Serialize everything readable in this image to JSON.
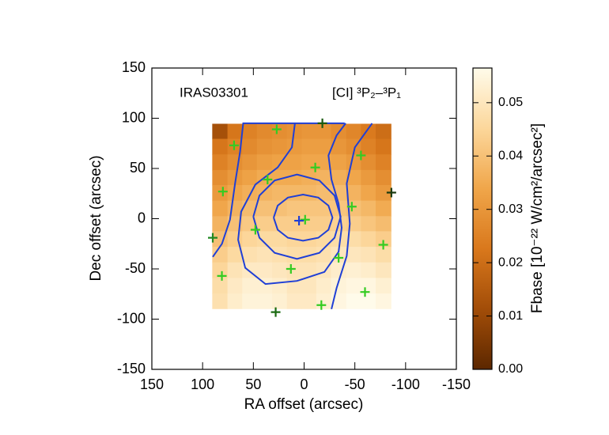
{
  "chart_data": {
    "type": "heatmap",
    "title": "IRAS03301",
    "subtitle": "[CI] ³P₂–³P₁",
    "xlabel": "RA offset (arcsec)",
    "ylabel": "Dec offset (arcsec)",
    "colorbar_label": "Fbase [10⁻²² W/cm²/arcsec²]",
    "xlim": [
      150,
      -150
    ],
    "ylim": [
      -150,
      150
    ],
    "xticks": [
      150,
      100,
      50,
      0,
      -50,
      -100,
      -150
    ],
    "yticks": [
      150,
      100,
      50,
      0,
      -50,
      -100,
      -150
    ],
    "x": [
      83,
      68,
      54,
      39,
      24,
      10,
      -5,
      -19,
      -34,
      -49,
      -63,
      -78
    ],
    "y": [
      87,
      72,
      56,
      41,
      26,
      10,
      -5,
      -20,
      -36,
      -51,
      -67,
      -82
    ],
    "z": [
      [
        0.012,
        0.022,
        0.025,
        0.027,
        0.028,
        0.029,
        0.03,
        0.03,
        0.028,
        0.026,
        0.023,
        0.02
      ],
      [
        0.022,
        0.025,
        0.027,
        0.029,
        0.03,
        0.031,
        0.032,
        0.032,
        0.03,
        0.028,
        0.025,
        0.022
      ],
      [
        0.025,
        0.028,
        0.03,
        0.032,
        0.033,
        0.033,
        0.034,
        0.034,
        0.033,
        0.031,
        0.028,
        0.025
      ],
      [
        0.028,
        0.031,
        0.033,
        0.035,
        0.035,
        0.035,
        0.036,
        0.037,
        0.036,
        0.034,
        0.031,
        0.028
      ],
      [
        0.031,
        0.034,
        0.036,
        0.037,
        0.038,
        0.038,
        0.038,
        0.039,
        0.039,
        0.037,
        0.034,
        0.031
      ],
      [
        0.034,
        0.037,
        0.039,
        0.04,
        0.04,
        0.041,
        0.041,
        0.041,
        0.041,
        0.04,
        0.038,
        0.035
      ],
      [
        0.037,
        0.04,
        0.042,
        0.043,
        0.043,
        0.043,
        0.043,
        0.043,
        0.044,
        0.043,
        0.041,
        0.039
      ],
      [
        0.04,
        0.043,
        0.045,
        0.046,
        0.046,
        0.045,
        0.045,
        0.046,
        0.047,
        0.047,
        0.045,
        0.043
      ],
      [
        0.043,
        0.046,
        0.048,
        0.049,
        0.048,
        0.047,
        0.047,
        0.048,
        0.05,
        0.05,
        0.049,
        0.047
      ],
      [
        0.045,
        0.049,
        0.051,
        0.051,
        0.05,
        0.049,
        0.049,
        0.05,
        0.052,
        0.053,
        0.052,
        0.05
      ],
      [
        0.047,
        0.051,
        0.053,
        0.053,
        0.052,
        0.05,
        0.05,
        0.052,
        0.054,
        0.055,
        0.055,
        0.053
      ],
      [
        0.048,
        0.052,
        0.054,
        0.054,
        0.053,
        0.051,
        0.051,
        0.053,
        0.055,
        0.057,
        0.057,
        0.055
      ]
    ],
    "zlim": [
      0,
      0.0565
    ],
    "zticks": [
      {
        "value": 0,
        "label": "0.00"
      },
      0.01,
      0.02,
      0.03,
      0.04,
      0.05
    ],
    "colormap": [
      "#5c2700",
      "#a24d08",
      "#d9781c",
      "#f0a64a",
      "#fcd79b",
      "#fffbea"
    ],
    "contours": {
      "color": "#1f3fd6",
      "lines": [
        {
          "x": [
            -40,
            60,
            63,
            68,
            73,
            81,
            90
          ],
          "y": [
            95,
            95,
            67,
            35,
            -1,
            -25,
            -38
          ]
        },
        {
          "x": [
            9,
            12,
            26,
            48,
            62,
            65,
            58,
            38,
            7,
            -20,
            -34,
            -37,
            -34,
            -27,
            -24,
            -32,
            -41
          ],
          "y": [
            95,
            71,
            51,
            34,
            7,
            -21,
            -49,
            -65,
            -62,
            -53,
            -33,
            -9,
            15,
            39,
            63,
            83,
            95
          ]
        },
        {
          "x": [
            -67,
            -50,
            -42,
            -45,
            -42,
            -32,
            -27
          ],
          "y": [
            95,
            71,
            35,
            -5,
            -37,
            -69,
            -90
          ]
        },
        {
          "x": [
            50,
            44,
            29,
            7,
            -15,
            -30,
            -36,
            -30,
            -15,
            7,
            29,
            44,
            50
          ],
          "y": [
            2,
            23,
            38,
            44,
            38,
            23,
            2,
            -19,
            -34,
            -40,
            -34,
            -19,
            2
          ]
        },
        {
          "x": [
            30,
            26,
            16,
            1,
            -14,
            -24,
            -28,
            -24,
            -14,
            1,
            16,
            26,
            30
          ],
          "y": [
            1,
            13,
            21,
            24,
            21,
            13,
            1,
            -11,
            -19,
            -22,
            -19,
            -11,
            1
          ]
        }
      ]
    },
    "markers": {
      "x": [
        27,
        69,
        -18,
        80,
        36,
        -11,
        -56,
        -86,
        -47,
        -1,
        48,
        90,
        -78,
        -34,
        13,
        81,
        -60,
        -17,
        28,
        5
      ],
      "y": [
        89,
        73,
        95,
        27,
        39,
        51,
        63,
        26,
        12,
        -1,
        -11,
        -19,
        -26,
        -39,
        -50,
        -57,
        -73,
        -86,
        -93,
        -2
      ],
      "colors": [
        "#33cc22",
        "#33cc22",
        "#1a5a10",
        "#33cc22",
        "#33cc22",
        "#33cc22",
        "#33cc22",
        "#1a3a10",
        "#33cc22",
        "#33cc22",
        "#33cc22",
        "#228822",
        "#33cc22",
        "#33cc22",
        "#33cc22",
        "#33cc22",
        "#33cc22",
        "#33cc22",
        "#1a6a10",
        "#1f3fd6"
      ]
    }
  }
}
